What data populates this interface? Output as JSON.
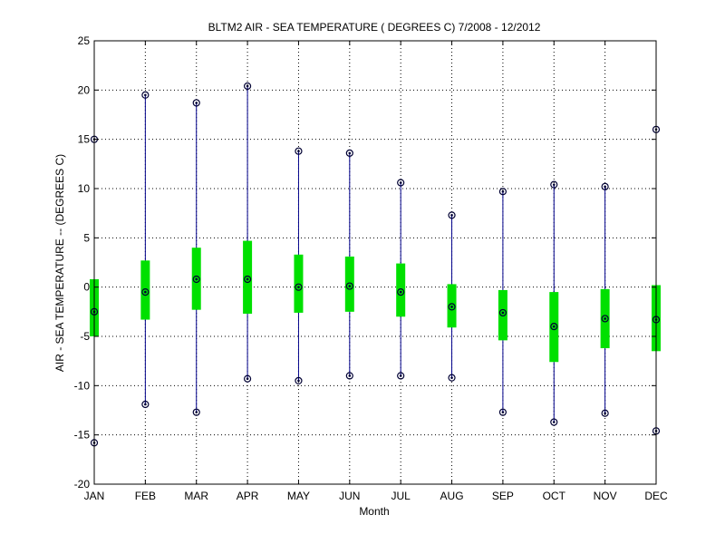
{
  "chart_data": {
    "type": "box",
    "title": "BLTM2  AIR - SEA TEMPERATURE ( DEGREES C) 7/2008 - 12/2012",
    "xlabel": "Month",
    "ylabel": "AIR - SEA TEMPERATURE -- (DEGREES C)",
    "ylim": [
      -20,
      25
    ],
    "yticks": [
      -20,
      -15,
      -10,
      -5,
      0,
      5,
      10,
      15,
      20,
      25
    ],
    "grid": true,
    "categories": [
      "JAN",
      "FEB",
      "MAR",
      "APR",
      "MAY",
      "JUN",
      "JUL",
      "AUG",
      "SEP",
      "OCT",
      "NOV",
      "DEC"
    ],
    "series": [
      {
        "max": [
          15.0,
          19.5,
          18.7,
          20.4,
          13.8,
          13.6,
          10.6,
          7.3,
          9.7,
          10.4,
          10.2,
          16.0
        ],
        "q3": [
          0.8,
          2.7,
          4.0,
          4.7,
          3.3,
          3.1,
          2.4,
          0.3,
          -0.3,
          -0.5,
          -0.2,
          0.2
        ],
        "median": [
          -2.5,
          -0.5,
          0.8,
          0.8,
          0.0,
          0.1,
          -0.5,
          -2.0,
          -2.6,
          -4.0,
          -3.2,
          -3.3
        ],
        "q1": [
          -5.0,
          -3.3,
          -2.3,
          -2.7,
          -2.6,
          -2.5,
          -3.0,
          -4.1,
          -5.4,
          -7.6,
          -6.2,
          -6.5
        ],
        "min": [
          -15.8,
          -11.9,
          -12.7,
          -9.3,
          -9.5,
          -9.0,
          -9.0,
          -9.2,
          -12.7,
          -13.7,
          -12.8,
          -14.6
        ]
      }
    ],
    "colors": {
      "whisker": "#00008b",
      "box": "#00e000",
      "marker": "#000033",
      "grid": "#000000"
    }
  }
}
